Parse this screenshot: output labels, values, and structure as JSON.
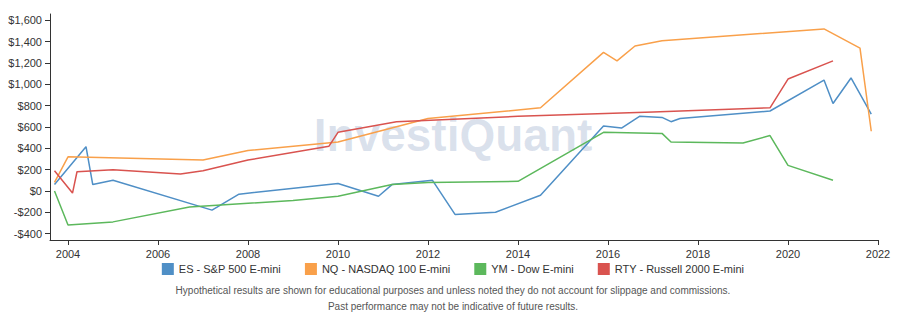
{
  "chart_data": {
    "type": "line",
    "watermark": "InvestiQuant",
    "footnotes": [
      "Hypothetical results are shown for educational purposes and unless noted they do not account for slippage and commissions.",
      "Past performance may not be indicative of future results."
    ],
    "xlim": [
      2003.6,
      2022
    ],
    "xticks": [
      2004,
      2006,
      2008,
      2010,
      2012,
      2014,
      2016,
      2018,
      2020,
      2022
    ],
    "ylim": [
      -460,
      1660
    ],
    "yticks": [
      {
        "value": -400,
        "label": "-$400"
      },
      {
        "value": -200,
        "label": "-$200"
      },
      {
        "value": 0,
        "label": "$0"
      },
      {
        "value": 200,
        "label": "$200"
      },
      {
        "value": 400,
        "label": "$400"
      },
      {
        "value": 600,
        "label": "$600"
      },
      {
        "value": 800,
        "label": "$800"
      },
      {
        "value": 1000,
        "label": "$1,000"
      },
      {
        "value": 1200,
        "label": "$1,200"
      },
      {
        "value": 1400,
        "label": "$1,400"
      },
      {
        "value": 1600,
        "label": "$1,600"
      }
    ],
    "grid": false,
    "legend": "bottom",
    "series": [
      {
        "name": "ES - S&P 500 E-mini",
        "color": "#4f8fc6",
        "x": [
          2003.7,
          2004.4,
          2004.55,
          2005.0,
          2007.2,
          2007.8,
          2010.0,
          2010.9,
          2011.2,
          2012.1,
          2012.6,
          2013.5,
          2014.5,
          2015.9,
          2016.3,
          2016.7,
          2017.2,
          2017.4,
          2017.6,
          2019.6,
          2020.8,
          2021.0,
          2021.4,
          2021.85
        ],
        "values": [
          60,
          415,
          60,
          100,
          -180,
          -30,
          70,
          -50,
          60,
          100,
          -220,
          -200,
          -40,
          610,
          590,
          700,
          690,
          650,
          680,
          750,
          1040,
          820,
          1060,
          720
        ]
      },
      {
        "name": "NQ - NASDAQ 100 E-mini",
        "color": "#f9a04a",
        "x": [
          2003.7,
          2004.0,
          2007.0,
          2008.0,
          2010.0,
          2012.0,
          2014.5,
          2015.9,
          2016.2,
          2016.6,
          2017.2,
          2020.8,
          2021.6,
          2021.85
        ],
        "values": [
          80,
          320,
          290,
          380,
          460,
          680,
          780,
          1300,
          1220,
          1360,
          1410,
          1520,
          1340,
          560
        ]
      },
      {
        "name": "YM - Dow E-mini",
        "color": "#5cb85c",
        "x": [
          2003.7,
          2004.0,
          2005.0,
          2006.7,
          2009.0,
          2010.0,
          2011.2,
          2012.0,
          2014.0,
          2015.9,
          2017.2,
          2017.4,
          2019.0,
          2019.6,
          2020.0,
          2021.0
        ],
        "values": [
          0,
          -320,
          -290,
          -150,
          -90,
          -50,
          60,
          80,
          90,
          550,
          540,
          460,
          450,
          520,
          240,
          100
        ]
      },
      {
        "name": "RTY - Russell 2000 E-mini",
        "color": "#d9534f",
        "x": [
          2003.7,
          2004.1,
          2004.2,
          2005.0,
          2006.5,
          2007.0,
          2008.0,
          2009.8,
          2010.0,
          2011.3,
          2014.0,
          2017.0,
          2019.6,
          2020.0,
          2021.0
        ],
        "values": [
          190,
          -20,
          180,
          200,
          160,
          190,
          290,
          420,
          550,
          650,
          700,
          740,
          780,
          1050,
          1220
        ]
      }
    ]
  }
}
